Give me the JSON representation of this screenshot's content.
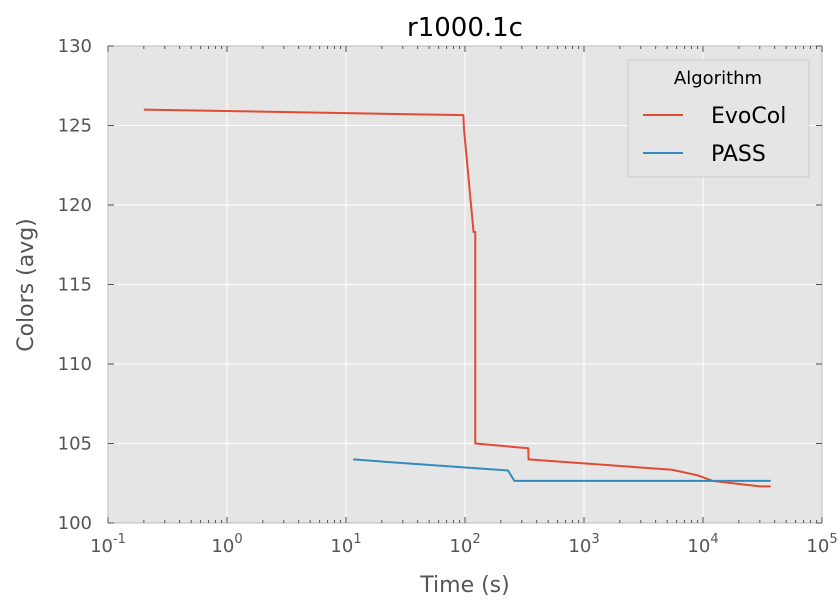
{
  "chart_data": {
    "type": "line",
    "title": "r1000.1c",
    "xlabel": "Time (s)",
    "ylabel": "Colors (avg)",
    "xscale": "log",
    "xlim": [
      0.1,
      100000
    ],
    "ylim": [
      100,
      130
    ],
    "grid": true,
    "legend_title": "Algorithm",
    "legend_position": "top-right",
    "x_ticks": [
      {
        "value": 0.1,
        "base": "10",
        "exp": "-1"
      },
      {
        "value": 1,
        "base": "10",
        "exp": "0"
      },
      {
        "value": 10,
        "base": "10",
        "exp": "1"
      },
      {
        "value": 100,
        "base": "10",
        "exp": "2"
      },
      {
        "value": 1000,
        "base": "10",
        "exp": "3"
      },
      {
        "value": 10000,
        "base": "10",
        "exp": "4"
      },
      {
        "value": 100000,
        "base": "10",
        "exp": "5"
      }
    ],
    "y_ticks": [
      100,
      105,
      110,
      115,
      120,
      125,
      130
    ],
    "series": [
      {
        "name": "EvoCol",
        "color": "#E24A33",
        "points": [
          [
            0.2,
            126.0
          ],
          [
            97,
            125.65
          ],
          [
            98,
            124.8
          ],
          [
            118,
            118.3
          ],
          [
            122,
            118.3
          ],
          [
            122,
            105.0
          ],
          [
            340,
            104.7
          ],
          [
            342,
            104.0
          ],
          [
            5500,
            103.35
          ],
          [
            9000,
            103.0
          ],
          [
            12000,
            102.65
          ],
          [
            30000,
            102.3
          ],
          [
            37000,
            102.3
          ]
        ]
      },
      {
        "name": "PASS",
        "color": "#348ABD",
        "points": [
          [
            11.5,
            104.0
          ],
          [
            40,
            103.7
          ],
          [
            230,
            103.3
          ],
          [
            260,
            102.65
          ],
          [
            37000,
            102.65
          ]
        ]
      }
    ]
  }
}
